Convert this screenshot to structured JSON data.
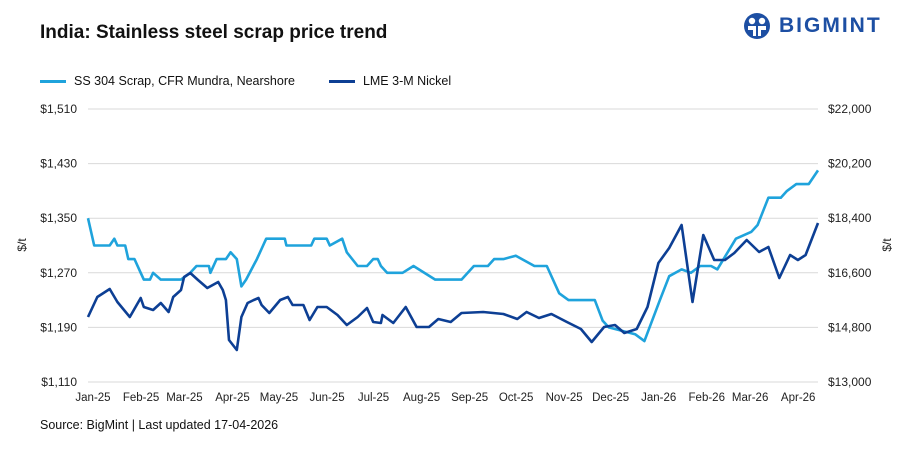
{
  "title": "India: Stainless steel scrap price trend",
  "logo_text": "BIGMINT",
  "source": "Source: BigMint | Last updated 17-04-2026",
  "colors": {
    "scrap": "#1fa3dc",
    "nickel": "#0d3f94",
    "grid": "#d9d9d9",
    "brand": "#1d4fa3"
  },
  "chart_data": {
    "type": "line",
    "title": "India: Stainless steel scrap price trend",
    "grid": true,
    "legend_placement": "top-left",
    "x_tick_labels": [
      "Jan-25",
      "Feb-25",
      "Mar-25",
      "Apr-25",
      "May-25",
      "Jun-25",
      "Jul-25",
      "Aug-25",
      "Sep-25",
      "Oct-25",
      "Nov-25",
      "Dec-25",
      "Jan-26",
      "Feb-26",
      "Mar-26",
      "Apr-26"
    ],
    "x_tick_dates": [
      "2025-01-01",
      "2025-02-01",
      "2025-03-01",
      "2025-04-01",
      "2025-05-01",
      "2025-06-01",
      "2025-07-01",
      "2025-08-01",
      "2025-09-01",
      "2025-10-01",
      "2025-11-01",
      "2025-12-01",
      "2026-01-01",
      "2026-02-01",
      "2026-03-01",
      "2026-04-01"
    ],
    "y_left": {
      "label": "$/t",
      "range": [
        1110,
        1510
      ],
      "ticks": [
        "$1,110",
        "$1,190",
        "$1,270",
        "$1,350",
        "$1,430",
        "$1,510"
      ]
    },
    "y_right": {
      "label": "$/t",
      "range": [
        13000,
        22000
      ],
      "ticks": [
        "$13,000",
        "$14,800",
        "$16,600",
        "$18,400",
        "$20,200",
        "$22,000"
      ]
    },
    "series": [
      {
        "name": "SS 304 Scrap, CFR Mundra, Nearshore",
        "axis": "left",
        "points": [
          [
            "2025-01-01",
            1350
          ],
          [
            "2025-01-05",
            1310
          ],
          [
            "2025-01-15",
            1310
          ],
          [
            "2025-01-18",
            1320
          ],
          [
            "2025-01-20",
            1310
          ],
          [
            "2025-01-25",
            1310
          ],
          [
            "2025-01-27",
            1290
          ],
          [
            "2025-01-31",
            1290
          ],
          [
            "2025-02-04",
            1270
          ],
          [
            "2025-02-06",
            1260
          ],
          [
            "2025-02-10",
            1260
          ],
          [
            "2025-02-12",
            1270
          ],
          [
            "2025-02-17",
            1260
          ],
          [
            "2025-02-23",
            1260
          ],
          [
            "2025-03-02",
            1260
          ],
          [
            "2025-03-08",
            1270
          ],
          [
            "2025-03-12",
            1280
          ],
          [
            "2025-03-20",
            1280
          ],
          [
            "2025-03-21",
            1270
          ],
          [
            "2025-03-25",
            1290
          ],
          [
            "2025-03-31",
            1290
          ],
          [
            "2025-04-03",
            1300
          ],
          [
            "2025-04-07",
            1290
          ],
          [
            "2025-04-10",
            1250
          ],
          [
            "2025-04-13",
            1260
          ],
          [
            "2025-04-20",
            1290
          ],
          [
            "2025-04-24",
            1310
          ],
          [
            "2025-04-26",
            1320
          ],
          [
            "2025-05-08",
            1320
          ],
          [
            "2025-05-09",
            1310
          ],
          [
            "2025-05-25",
            1310
          ],
          [
            "2025-05-27",
            1320
          ],
          [
            "2025-06-04",
            1320
          ],
          [
            "2025-06-06",
            1310
          ],
          [
            "2025-06-14",
            1320
          ],
          [
            "2025-06-17",
            1300
          ],
          [
            "2025-06-24",
            1280
          ],
          [
            "2025-06-30",
            1280
          ],
          [
            "2025-07-04",
            1290
          ],
          [
            "2025-07-07",
            1290
          ],
          [
            "2025-07-09",
            1280
          ],
          [
            "2025-07-13",
            1270
          ],
          [
            "2025-07-23",
            1270
          ],
          [
            "2025-07-30",
            1280
          ],
          [
            "2025-08-13",
            1260
          ],
          [
            "2025-08-30",
            1260
          ],
          [
            "2025-09-07",
            1280
          ],
          [
            "2025-09-16",
            1280
          ],
          [
            "2025-09-20",
            1290
          ],
          [
            "2025-09-26",
            1290
          ],
          [
            "2025-10-04",
            1295
          ],
          [
            "2025-10-16",
            1280
          ],
          [
            "2025-10-24",
            1280
          ],
          [
            "2025-11-01",
            1240
          ],
          [
            "2025-11-07",
            1230
          ],
          [
            "2025-11-24",
            1230
          ],
          [
            "2025-11-29",
            1200
          ],
          [
            "2025-12-03",
            1190
          ],
          [
            "2025-12-20",
            1180
          ],
          [
            "2025-12-26",
            1170
          ],
          [
            "2026-01-05",
            1230
          ],
          [
            "2026-01-11",
            1265
          ],
          [
            "2026-01-19",
            1275
          ],
          [
            "2026-01-25",
            1270
          ],
          [
            "2026-01-31",
            1280
          ],
          [
            "2026-02-07",
            1280
          ],
          [
            "2026-02-11",
            1275
          ],
          [
            "2026-02-23",
            1320
          ],
          [
            "2026-03-05",
            1330
          ],
          [
            "2026-03-09",
            1340
          ],
          [
            "2026-03-16",
            1380
          ],
          [
            "2026-03-24",
            1380
          ],
          [
            "2026-03-28",
            1390
          ],
          [
            "2026-04-03",
            1400
          ],
          [
            "2026-04-11",
            1400
          ],
          [
            "2026-04-17",
            1420
          ]
        ]
      },
      {
        "name": "LME 3-M Nickel",
        "axis": "right",
        "points": [
          [
            "2025-01-01",
            15143
          ],
          [
            "2025-01-07",
            15802
          ],
          [
            "2025-01-15",
            16066
          ],
          [
            "2025-01-20",
            15638
          ],
          [
            "2025-01-28",
            15143
          ],
          [
            "2025-02-04",
            15769
          ],
          [
            "2025-02-06",
            15473
          ],
          [
            "2025-02-12",
            15374
          ],
          [
            "2025-02-17",
            15605
          ],
          [
            "2025-02-22",
            15308
          ],
          [
            "2025-02-25",
            15802
          ],
          [
            "2025-03-02",
            16033
          ],
          [
            "2025-03-04",
            16462
          ],
          [
            "2025-03-08",
            16594
          ],
          [
            "2025-03-13",
            16363
          ],
          [
            "2025-03-19",
            16099
          ],
          [
            "2025-03-26",
            16297
          ],
          [
            "2025-03-29",
            16033
          ],
          [
            "2025-03-31",
            15704
          ],
          [
            "2025-04-02",
            14385
          ],
          [
            "2025-04-07",
            14055
          ],
          [
            "2025-04-10",
            15143
          ],
          [
            "2025-04-14",
            15605
          ],
          [
            "2025-04-18",
            15704
          ],
          [
            "2025-04-21",
            15769
          ],
          [
            "2025-04-23",
            15539
          ],
          [
            "2025-04-28",
            15275
          ],
          [
            "2025-05-05",
            15704
          ],
          [
            "2025-05-10",
            15802
          ],
          [
            "2025-05-13",
            15539
          ],
          [
            "2025-05-20",
            15539
          ],
          [
            "2025-05-24",
            15044
          ],
          [
            "2025-05-29",
            15473
          ],
          [
            "2025-06-04",
            15473
          ],
          [
            "2025-06-11",
            15209
          ],
          [
            "2025-06-17",
            14879
          ],
          [
            "2025-06-24",
            15143
          ],
          [
            "2025-06-30",
            15440
          ],
          [
            "2025-07-04",
            14978
          ],
          [
            "2025-07-09",
            14945
          ],
          [
            "2025-07-10",
            15209
          ],
          [
            "2025-07-17",
            14945
          ],
          [
            "2025-07-25",
            15473
          ],
          [
            "2025-08-01",
            14813
          ],
          [
            "2025-08-09",
            14813
          ],
          [
            "2025-08-15",
            15077
          ],
          [
            "2025-08-23",
            14978
          ],
          [
            "2025-08-30",
            15275
          ],
          [
            "2025-09-13",
            15308
          ],
          [
            "2025-09-26",
            15242
          ],
          [
            "2025-10-05",
            15077
          ],
          [
            "2025-10-11",
            15308
          ],
          [
            "2025-10-19",
            15110
          ],
          [
            "2025-10-27",
            15242
          ],
          [
            "2025-11-06",
            14978
          ],
          [
            "2025-11-15",
            14747
          ],
          [
            "2025-11-22",
            14319
          ],
          [
            "2025-11-30",
            14813
          ],
          [
            "2025-12-07",
            14879
          ],
          [
            "2025-12-13",
            14616
          ],
          [
            "2025-12-21",
            14747
          ],
          [
            "2025-12-28",
            15473
          ],
          [
            "2026-01-04",
            16923
          ],
          [
            "2026-01-11",
            17418
          ],
          [
            "2026-01-19",
            18176
          ],
          [
            "2026-01-26",
            15638
          ],
          [
            "2026-02-02",
            17846
          ],
          [
            "2026-02-09",
            17022
          ],
          [
            "2026-02-16",
            17022
          ],
          [
            "2026-02-22",
            17253
          ],
          [
            "2026-03-02",
            17682
          ],
          [
            "2026-03-10",
            17286
          ],
          [
            "2026-03-16",
            17451
          ],
          [
            "2026-03-23",
            16429
          ],
          [
            "2026-03-30",
            17187
          ],
          [
            "2026-04-04",
            17022
          ],
          [
            "2026-04-09",
            17187
          ],
          [
            "2026-04-17",
            18242
          ]
        ]
      }
    ]
  }
}
